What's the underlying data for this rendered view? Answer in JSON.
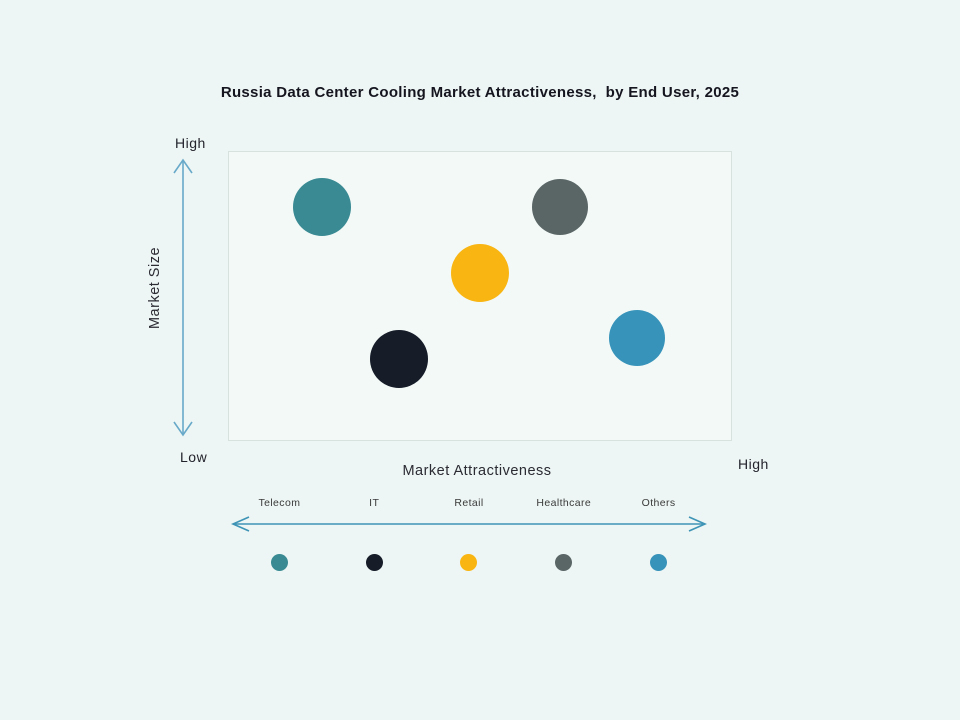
{
  "title": "Russia Data Center Cooling Market Attractiveness,  by End User, 2025",
  "axes": {
    "y_label": "Market Size",
    "y_high": "High",
    "y_low": "Low",
    "x_label": "Market Attractiveness",
    "x_high": "High"
  },
  "colors": {
    "background": "#edf6f4",
    "plot_fill": "#f2f9f7",
    "plot_border": "#d7e1de",
    "y_arrow": "#68a9c9",
    "x_arrow": "#3e94b6",
    "title_text": "#15151f",
    "telecom": "#398a93",
    "it": "#161c28",
    "retail": "#f9b511",
    "healthcare": "#5a6566",
    "others": "#3793ba"
  },
  "chart_data": {
    "type": "scatter",
    "title": "Russia Data Center Cooling Market Attractiveness, by End User, 2025",
    "xlabel": "Market Attractiveness",
    "ylabel": "Market Size",
    "x_range_labels": [
      "Low",
      "High"
    ],
    "y_range_labels": [
      "Low",
      "High"
    ],
    "x_axis_numeric": false,
    "grid": false,
    "legend_position": "bottom",
    "points": [
      {
        "label": "Telecom",
        "x": 0.185,
        "y": 0.81,
        "r": 29,
        "color": "#398a93"
      },
      {
        "label": "IT",
        "x": 0.339,
        "y": 0.28,
        "r": 29,
        "color": "#161c28"
      },
      {
        "label": "Retail",
        "x": 0.5,
        "y": 0.58,
        "r": 29,
        "color": "#f9b511"
      },
      {
        "label": "Healthcare",
        "x": 0.659,
        "y": 0.81,
        "r": 28,
        "color": "#5a6566"
      },
      {
        "label": "Others",
        "x": 0.813,
        "y": 0.355,
        "r": 28,
        "color": "#3793ba"
      }
    ]
  },
  "legend": {
    "items": [
      {
        "label": "Telecom",
        "color": "#398a93"
      },
      {
        "label": "IT",
        "color": "#161c28"
      },
      {
        "label": "Retail",
        "color": "#f9b511"
      },
      {
        "label": "Healthcare",
        "color": "#5a6566"
      },
      {
        "label": "Others",
        "color": "#3793ba"
      }
    ]
  }
}
